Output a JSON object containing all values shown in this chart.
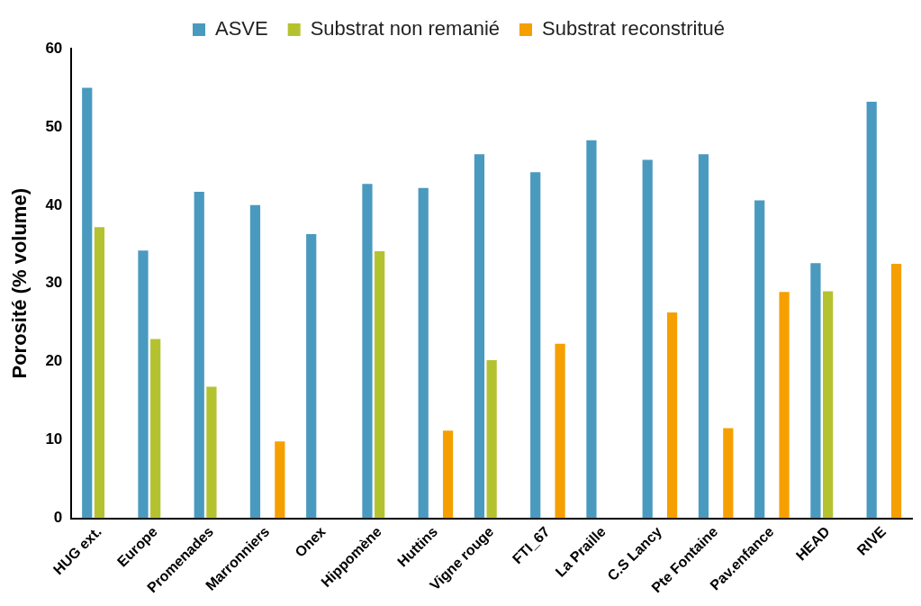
{
  "chart_data": {
    "type": "bar",
    "ylabel": "Porosité (% volume)",
    "categories": [
      "HUG ext.",
      "Europe",
      "Promenades",
      "Marronniers",
      "Onex",
      "Hippomène",
      "Huttins",
      "Vigne rouge",
      "FTI_67",
      "La Praille",
      "C.S Lancy",
      "Pte Fontaine",
      "Pav.enfance",
      "HEAD",
      "RIVE"
    ],
    "series": [
      {
        "name": "ASVE",
        "color": "#4a9ac0",
        "values": [
          55.0,
          34.2,
          41.7,
          40.0,
          36.3,
          42.7,
          42.2,
          46.5,
          44.2,
          48.3,
          45.8,
          46.5,
          40.6,
          32.6,
          53.2
        ]
      },
      {
        "name": "Substrat non remanié",
        "color": "#b5c230",
        "values": [
          37.2,
          22.9,
          16.8,
          null,
          null,
          34.1,
          null,
          20.2,
          null,
          null,
          null,
          null,
          null,
          29.0,
          null
        ]
      },
      {
        "name": "Substrat reconstritué",
        "color": "#f5a000",
        "values": [
          null,
          null,
          null,
          9.8,
          null,
          null,
          11.2,
          null,
          22.3,
          null,
          26.3,
          11.5,
          28.9,
          null,
          32.5
        ]
      }
    ],
    "ylim": [
      0,
      60
    ],
    "yticks": [
      0,
      10,
      20,
      30,
      40,
      50,
      60
    ],
    "grid": false,
    "legend": "top"
  }
}
